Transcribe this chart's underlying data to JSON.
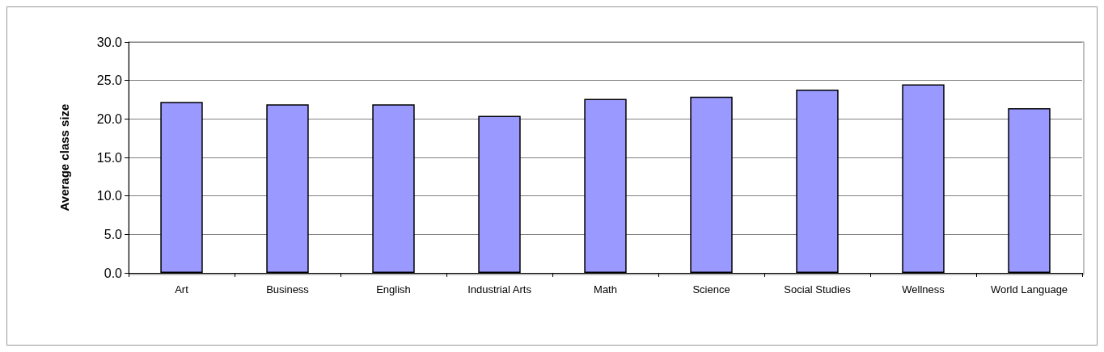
{
  "chart_data": {
    "type": "bar",
    "ylabel": "Average class size",
    "categories": [
      "Art",
      "Business",
      "English",
      "Industrial Arts",
      "Math",
      "Science",
      "Social Studies",
      "Wellness",
      "World Language"
    ],
    "values": [
      22.2,
      21.9,
      21.9,
      20.4,
      22.6,
      22.9,
      23.8,
      24.5,
      21.4
    ],
    "color": "#9999ff",
    "ylim": [
      0,
      30
    ],
    "yticks": [
      {
        "value": 0,
        "label": "0.0"
      },
      {
        "value": 5,
        "label": "5.0"
      },
      {
        "value": 10,
        "label": "10.0"
      },
      {
        "value": 15,
        "label": "15.0"
      },
      {
        "value": 20,
        "label": "20.0"
      },
      {
        "value": 25,
        "label": "25.0"
      },
      {
        "value": 30,
        "label": "30.0"
      }
    ],
    "grid": "y"
  }
}
